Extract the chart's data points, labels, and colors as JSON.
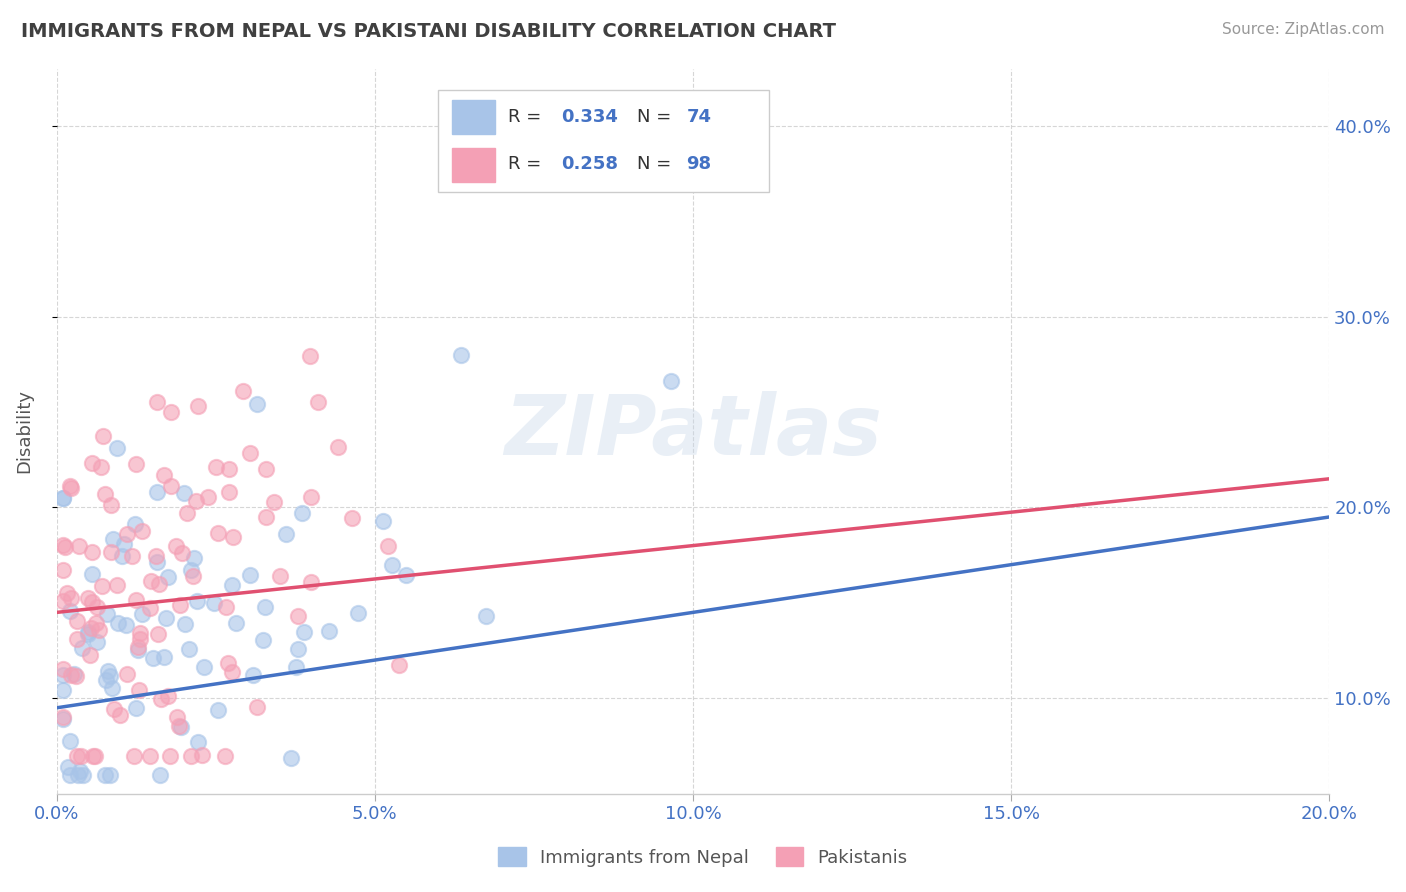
{
  "title": "IMMIGRANTS FROM NEPAL VS PAKISTANI DISABILITY CORRELATION CHART",
  "source": "Source: ZipAtlas.com",
  "ylabel": "Disability",
  "watermark": "ZIPatlas",
  "nepal_color": "#a8c4e8",
  "pakistan_color": "#f4a0b5",
  "nepal_line_color": "#4472c4",
  "pakistan_line_color": "#e05070",
  "nepal_R": 0.334,
  "nepal_N": 74,
  "pakistan_R": 0.258,
  "pakistan_N": 98,
  "background_color": "#ffffff",
  "grid_color": "#cccccc",
  "axis_label_color": "#4472c4",
  "title_color": "#404040",
  "xlim": [
    0.0,
    0.2
  ],
  "ylim": [
    0.05,
    0.43
  ],
  "yticks": [
    0.1,
    0.2,
    0.3,
    0.4
  ],
  "yticklabels": [
    "10.0%",
    "20.0%",
    "30.0%",
    "40.0%"
  ],
  "xticks": [
    0.0,
    0.05,
    0.1,
    0.15,
    0.2
  ],
  "xticklabels": [
    "0.0%",
    "5.0%",
    "10.0%",
    "15.0%",
    "20.0%"
  ]
}
